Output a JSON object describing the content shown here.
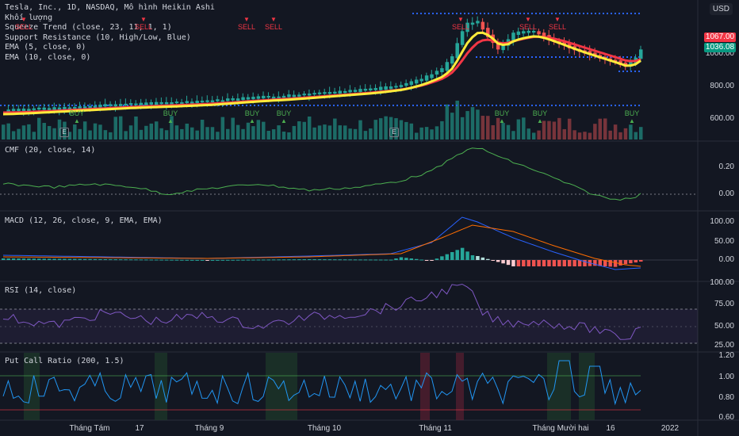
{
  "chart": {
    "currency": "USD",
    "legend": [
      "Tesla, Inc., 1D, NASDAQ, Mô hình Heikin Ashi",
      "Khối lượng",
      "Squeeze Trend (close, 23, 11, 1, 1)",
      "Support Resistance (10, High/Low, Blue)",
      "EMA (5, close, 0)",
      "EMA (10, close, 0)"
    ],
    "price_axis": [
      "1000.00",
      "800.00",
      "600.00"
    ],
    "price_tags": [
      {
        "value": "1067.00",
        "color": "#f23645"
      },
      {
        "value": "1036.08",
        "color": "#089981"
      }
    ],
    "sell_label": "SELL",
    "buy_label": "BUY",
    "earnings_label": "E"
  },
  "panes": {
    "cmf": {
      "title": "CMF (20, close, 14)",
      "axis": [
        "0.20",
        "0.00"
      ]
    },
    "macd": {
      "title": "MACD (12, 26, close, 9, EMA, EMA)",
      "axis": [
        "100.00",
        "50.00",
        "0.00"
      ]
    },
    "rsi": {
      "title": "RSI (14, close)",
      "axis": [
        "100.00",
        "75.00",
        "50.00",
        "25.00"
      ]
    },
    "pcr": {
      "title": "Put Call Ratio (200, 1.5)",
      "axis": [
        "1.20",
        "1.00",
        "0.80",
        "0.60"
      ]
    }
  },
  "time_axis": [
    "Tháng Tám",
    "17",
    "Tháng 9",
    "Tháng 10",
    "Tháng 11",
    "Tháng Mười hai",
    "16",
    "2022"
  ],
  "colors": {
    "bg": "#131722",
    "up": "#26a69a",
    "down": "#ef5350",
    "ema5": "#ffeb3b",
    "squeeze": "#f23645",
    "support": "#2962ff",
    "indicator": "#4caf50",
    "macd": "#2962ff",
    "signal": "#ff6d00",
    "rsi": "#7e57c2",
    "pcr": "#2196f3"
  }
}
